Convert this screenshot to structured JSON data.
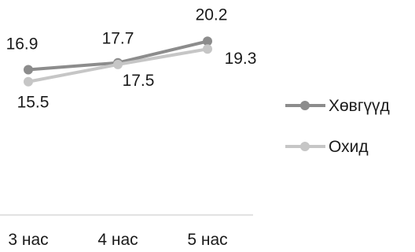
{
  "chart_data": {
    "type": "line",
    "categories": [
      "3 нас",
      "4 нас",
      "5 нас"
    ],
    "series": [
      {
        "name": "Хөвгүүд",
        "values": [
          16.9,
          17.7,
          20.2
        ],
        "color": "#8c8c8c"
      },
      {
        "name": "Охид",
        "values": [
          15.5,
          17.5,
          19.3
        ],
        "color": "#c6c6c6"
      }
    ],
    "ylim": [
      0,
      25
    ],
    "grid": false,
    "legend_position": "right",
    "axis_color": "#d9d9d9"
  }
}
